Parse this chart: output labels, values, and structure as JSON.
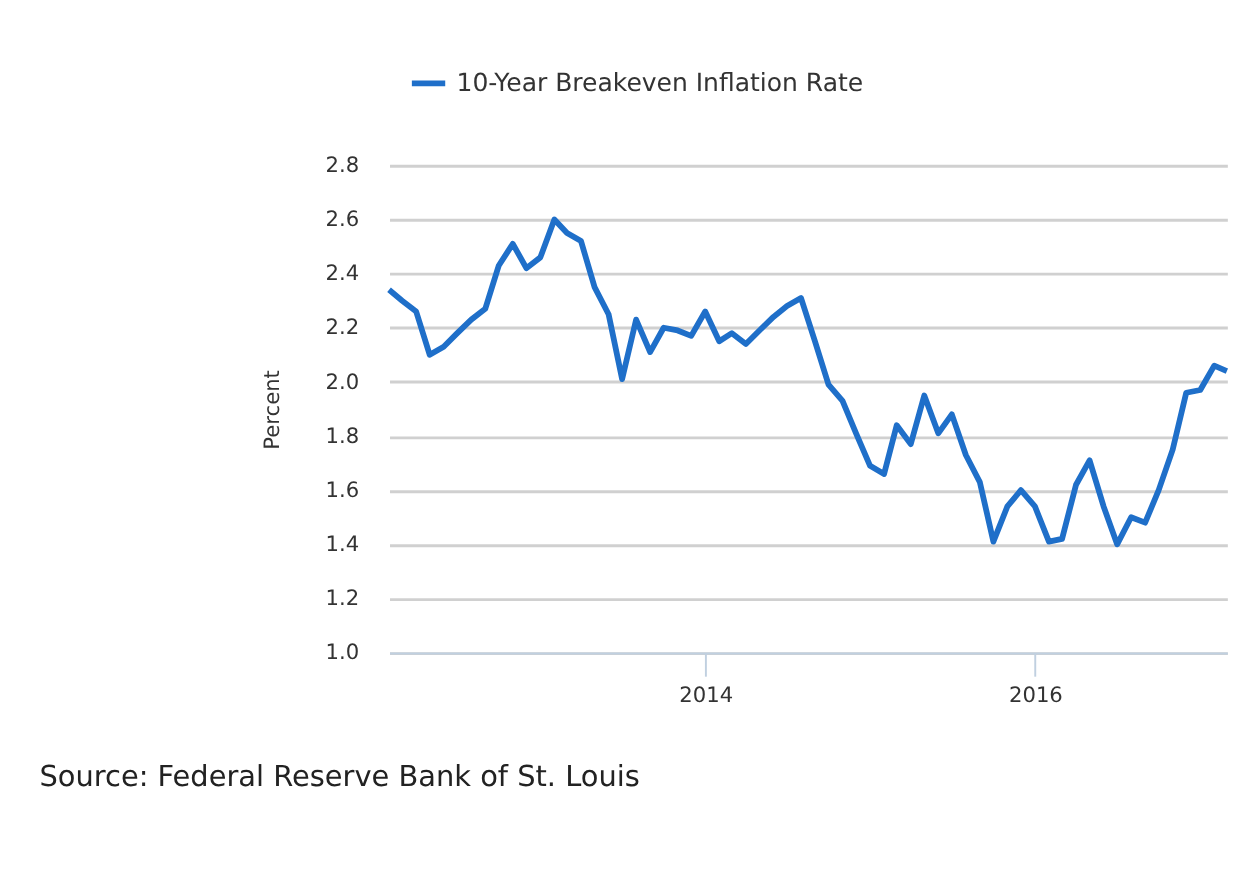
{
  "chart_data": {
    "type": "line",
    "ylabel": "Percent",
    "annotations": [
      "Source: Federal Reserve Bank of St. Louis"
    ],
    "x": [
      "2012-02",
      "2012-03",
      "2012-04",
      "2012-05",
      "2012-06",
      "2012-07",
      "2012-08",
      "2012-09",
      "2012-10",
      "2012-11",
      "2012-12",
      "2013-01",
      "2013-02",
      "2013-03",
      "2013-04",
      "2013-05",
      "2013-06",
      "2013-07",
      "2013-08",
      "2013-09",
      "2013-10",
      "2013-11",
      "2013-12",
      "2014-01",
      "2014-02",
      "2014-03",
      "2014-04",
      "2014-05",
      "2014-06",
      "2014-07",
      "2014-08",
      "2014-09",
      "2014-10",
      "2014-11",
      "2014-12",
      "2015-01",
      "2015-02",
      "2015-03",
      "2015-04",
      "2015-05",
      "2015-06",
      "2015-07",
      "2015-08",
      "2015-09",
      "2015-10",
      "2015-11",
      "2015-12",
      "2016-01",
      "2016-02",
      "2016-03",
      "2016-04",
      "2016-05",
      "2016-06",
      "2016-07",
      "2016-08",
      "2016-09",
      "2016-10",
      "2016-11",
      "2016-12",
      "2017-01",
      "2017-02",
      "2017-03"
    ],
    "series": [
      {
        "name": "10-Year Breakeven Inflation Rate",
        "color": "#1f6fc9",
        "values": [
          2.34,
          2.3,
          2.26,
          2.1,
          2.13,
          2.18,
          2.23,
          2.27,
          2.43,
          2.51,
          2.42,
          2.46,
          2.6,
          2.55,
          2.52,
          2.35,
          2.25,
          2.01,
          2.23,
          2.11,
          2.2,
          2.19,
          2.17,
          2.26,
          2.15,
          2.18,
          2.14,
          2.19,
          2.24,
          2.28,
          2.31,
          2.15,
          1.99,
          1.93,
          1.81,
          1.69,
          1.66,
          1.84,
          1.77,
          1.95,
          1.81,
          1.88,
          1.73,
          1.63,
          1.41,
          1.54,
          1.6,
          1.54,
          1.41,
          1.42,
          1.62,
          1.71,
          1.54,
          1.4,
          1.5,
          1.48,
          1.6,
          1.75,
          1.96,
          1.97,
          2.06,
          2.04
        ]
      }
    ],
    "xlim": [
      "2012-02",
      "2017-03"
    ],
    "xticks": [
      "2014",
      "2016"
    ],
    "ylim": [
      1.0,
      2.8
    ],
    "yticks": [
      {
        "value": 1.0,
        "label": "1.0"
      },
      {
        "value": 1.2,
        "label": "1.2"
      },
      {
        "value": 1.4,
        "label": "1.4"
      },
      {
        "value": 1.6,
        "label": "1.6"
      },
      {
        "value": 1.8,
        "label": "1.8"
      },
      {
        "value": 2.0,
        "label": "2.0"
      },
      {
        "value": 2.2,
        "label": "2.2"
      },
      {
        "value": 2.4,
        "label": "2.4"
      },
      {
        "value": 2.6,
        "label": "2.6"
      },
      {
        "value": 2.8,
        "label": "2.8"
      }
    ],
    "grid": "y",
    "legend": "top",
    "marker": "none",
    "line_style": "solid"
  }
}
